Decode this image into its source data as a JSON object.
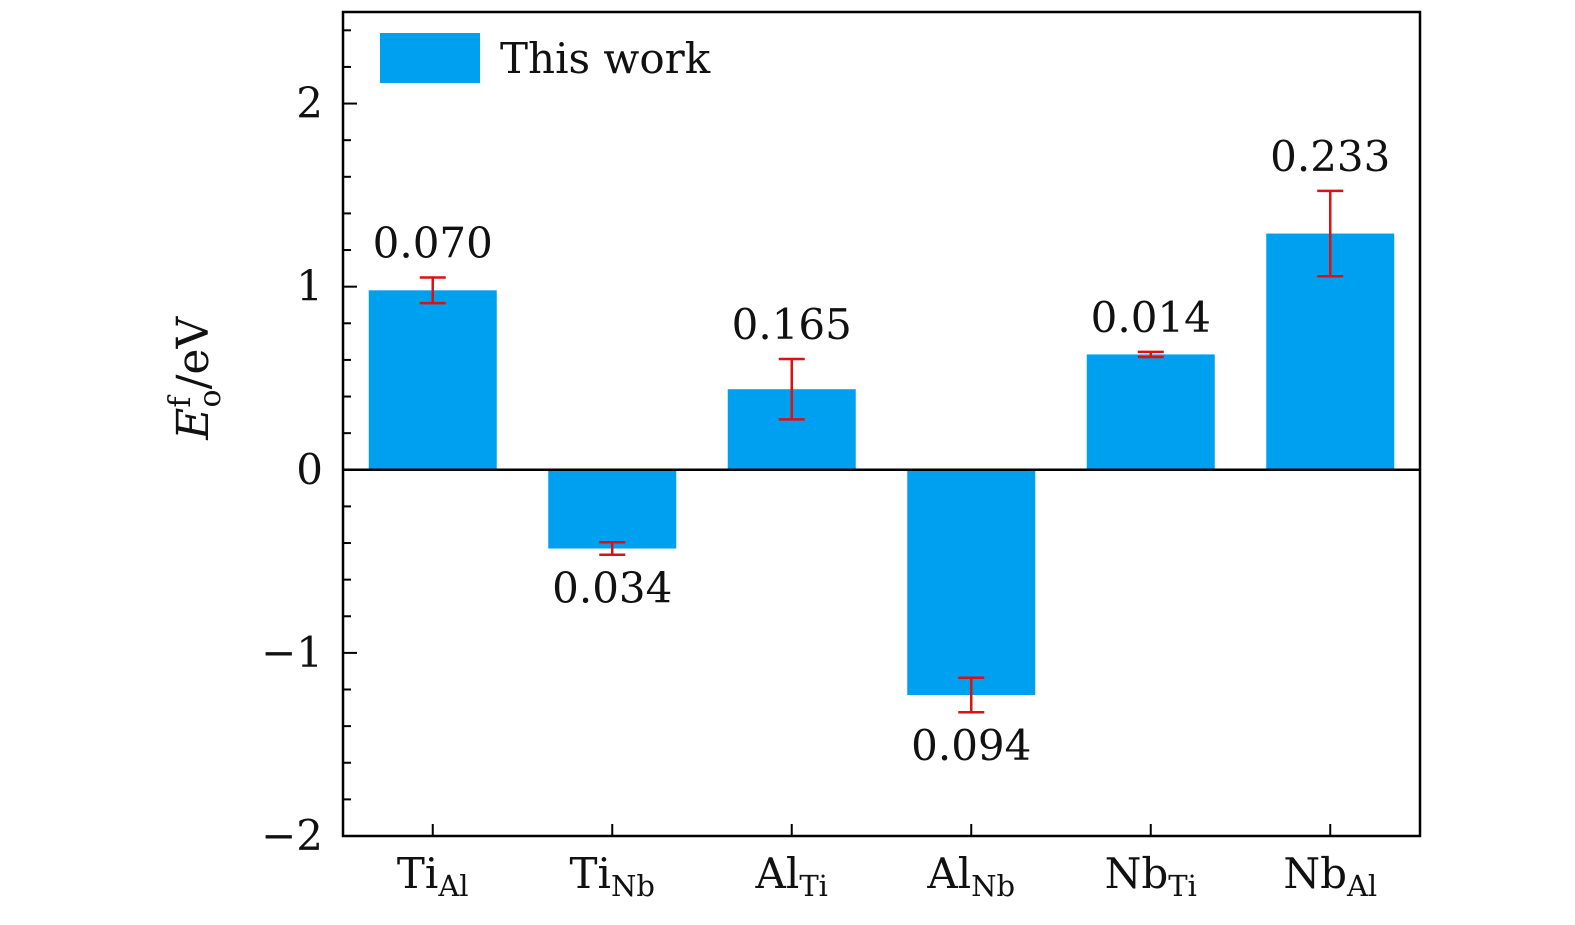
{
  "chart_data": {
    "type": "bar",
    "title": "",
    "ylabel": {
      "main": "E",
      "superscript": "f",
      "subscript": "o",
      "unit": "/eV"
    },
    "ylim": [
      -2,
      2.5
    ],
    "yticks": [
      {
        "value": 2,
        "label": "2"
      },
      {
        "value": 1,
        "label": "1"
      },
      {
        "value": 0,
        "label": "0"
      },
      {
        "value": -1,
        "label": "−1"
      },
      {
        "value": -2,
        "label": "−2"
      }
    ],
    "categories": [
      {
        "main": "Ti",
        "sub": "Al"
      },
      {
        "main": "Ti",
        "sub": "Nb"
      },
      {
        "main": "Al",
        "sub": "Ti"
      },
      {
        "main": "Al",
        "sub": "Nb"
      },
      {
        "main": "Nb",
        "sub": "Ti"
      },
      {
        "main": "Nb",
        "sub": "Al"
      }
    ],
    "series": [
      {
        "name": "This work",
        "color": "#00a0f0",
        "values": [
          0.98,
          -0.43,
          0.44,
          -1.23,
          0.63,
          1.29
        ],
        "error": [
          0.07,
          0.034,
          0.165,
          0.094,
          0.014,
          0.233
        ],
        "error_labels": [
          "0.070",
          "0.034",
          "0.165",
          "0.094",
          "0.014",
          "0.233"
        ]
      }
    ],
    "error_color": "#dd1111",
    "legend": {
      "position": "top-left"
    },
    "grid": false
  }
}
